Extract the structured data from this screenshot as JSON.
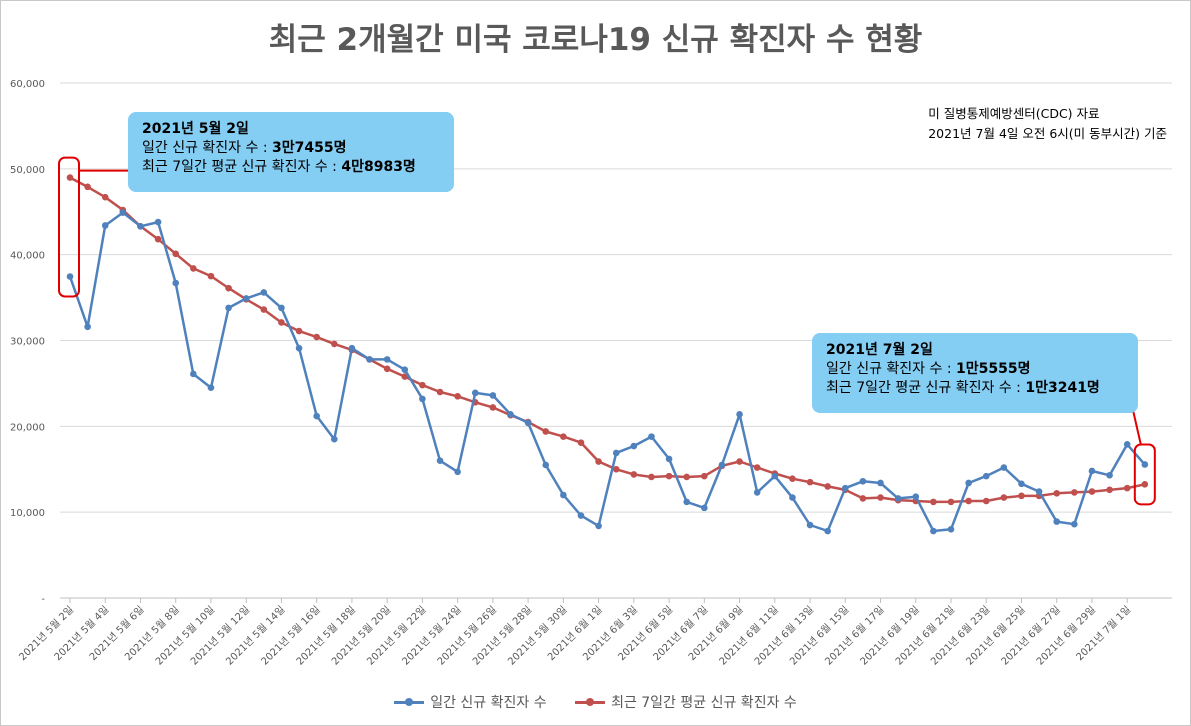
{
  "title": "최근 2개월간 미국 코로나19 신규 확진자 수 현황",
  "source_lines": [
    "미 질병통제예방센터(CDC) 자료",
    "2021년 7월 4일 오전 6시(미 동부시간) 기준"
  ],
  "callouts": [
    {
      "date": "2021년 5월 2일",
      "line1_label": "일간 신규 확진자 수 : ",
      "line1_value": "3만7455명",
      "line2_label": "최근 7일간 평균 신규 확진자 수 : ",
      "line2_value": "4만8983명"
    },
    {
      "date": "2021년 7월 2일",
      "line1_label": "일간 신규 확진자 수 : ",
      "line1_value": "1만5555명",
      "line2_label": "최근 7일간 평균 신규 확진자 수 : ",
      "line2_value": "1만3241명"
    }
  ],
  "colors": {
    "daily": "#4f81bd",
    "avg": "#c0504d",
    "highlight": "#e00000",
    "callout": "#84cdf3",
    "grid": "#d9d9d9",
    "axis_text": "#595959"
  },
  "chart_data": {
    "type": "line",
    "ylim": [
      0,
      60000
    ],
    "yticks": [
      0,
      10000,
      20000,
      30000,
      40000,
      50000,
      60000
    ],
    "ytick_labels": [
      "-",
      "10,000",
      "20,000",
      "30,000",
      "40,000",
      "50,000",
      "60,000"
    ],
    "grid": true,
    "legend_position": "bottom",
    "x_tick_labels": [
      "2021년 5월 2일",
      "2021년 5월 4일",
      "2021년 5월 6일",
      "2021년 5월 8일",
      "2021년 5월 10일",
      "2021년 5월 12일",
      "2021년 5월 14일",
      "2021년 5월 16일",
      "2021년 5월 18일",
      "2021년 5월 20일",
      "2021년 5월 22일",
      "2021년 5월 24일",
      "2021년 5월 26일",
      "2021년 5월 28일",
      "2021년 5월 30일",
      "2021년 6월 1일",
      "2021년 6월 3일",
      "2021년 6월 5일",
      "2021년 6월 7일",
      "2021년 6월 9일",
      "2021년 6월 11일",
      "2021년 6월 13일",
      "2021년 6월 15일",
      "2021년 6월 17일",
      "2021년 6월 19일",
      "2021년 6월 21일",
      "2021년 6월 23일",
      "2021년 6월 25일",
      "2021년 6월 27일",
      "2021년 6월 29일",
      "2021년 7월 1일"
    ],
    "x": [
      "2021-05-02",
      "2021-05-03",
      "2021-05-04",
      "2021-05-05",
      "2021-05-06",
      "2021-05-07",
      "2021-05-08",
      "2021-05-09",
      "2021-05-10",
      "2021-05-11",
      "2021-05-12",
      "2021-05-13",
      "2021-05-14",
      "2021-05-15",
      "2021-05-16",
      "2021-05-17",
      "2021-05-18",
      "2021-05-19",
      "2021-05-20",
      "2021-05-21",
      "2021-05-22",
      "2021-05-23",
      "2021-05-24",
      "2021-05-25",
      "2021-05-26",
      "2021-05-27",
      "2021-05-28",
      "2021-05-29",
      "2021-05-30",
      "2021-05-31",
      "2021-06-01",
      "2021-06-02",
      "2021-06-03",
      "2021-06-04",
      "2021-06-05",
      "2021-06-06",
      "2021-06-07",
      "2021-06-08",
      "2021-06-09",
      "2021-06-10",
      "2021-06-11",
      "2021-06-12",
      "2021-06-13",
      "2021-06-14",
      "2021-06-15",
      "2021-06-16",
      "2021-06-17",
      "2021-06-18",
      "2021-06-19",
      "2021-06-20",
      "2021-06-21",
      "2021-06-22",
      "2021-06-23",
      "2021-06-24",
      "2021-06-25",
      "2021-06-26",
      "2021-06-27",
      "2021-06-28",
      "2021-06-29",
      "2021-06-30",
      "2021-07-01",
      "2021-07-02"
    ],
    "series": [
      {
        "name": "일간 신규 확진자 수",
        "values": [
          37455,
          31600,
          43400,
          44900,
          43300,
          43800,
          36700,
          26100,
          24500,
          33800,
          34900,
          35600,
          33800,
          29100,
          21200,
          18500,
          29100,
          27800,
          27800,
          26600,
          23200,
          16000,
          14700,
          23900,
          23600,
          21400,
          20400,
          15500,
          12000,
          9600,
          8400,
          16900,
          17700,
          18800,
          16200,
          11200,
          10500,
          15500,
          21400,
          12300,
          14200,
          11700,
          8500,
          7800,
          12800,
          13600,
          13400,
          11600,
          11800,
          7800,
          8000,
          13400,
          14200,
          15200,
          13300,
          12400,
          8900,
          8600,
          14800,
          14300,
          17900,
          15555
        ]
      },
      {
        "name": "최근 7일간 평균 신규 확진자 수",
        "values": [
          48983,
          47900,
          46700,
          45200,
          43300,
          41800,
          40100,
          38400,
          37500,
          36100,
          34800,
          33600,
          32100,
          31100,
          30400,
          29600,
          28900,
          27800,
          26700,
          25800,
          24800,
          24000,
          23500,
          22800,
          22200,
          21300,
          20500,
          19400,
          18800,
          18100,
          15900,
          15000,
          14400,
          14100,
          14200,
          14100,
          14200,
          15400,
          15900,
          15200,
          14500,
          13900,
          13500,
          13000,
          12600,
          11600,
          11700,
          11400,
          11300,
          11200,
          11200,
          11300,
          11300,
          11700,
          11900,
          11900,
          12200,
          12300,
          12400,
          12600,
          12800,
          13241
        ]
      }
    ]
  }
}
